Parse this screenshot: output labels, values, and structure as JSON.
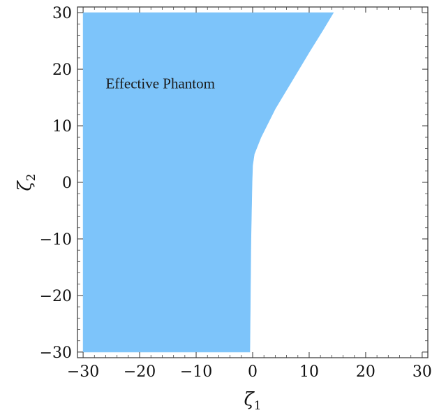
{
  "chart_data": {
    "type": "area",
    "title": "",
    "xlabel_base": "ζ",
    "xlabel_sub": "1",
    "ylabel_base": "ζ",
    "ylabel_sub": "2",
    "xlim": [
      -31,
      31
    ],
    "ylim": [
      -31,
      31
    ],
    "xticks": [
      -30,
      -20,
      -10,
      0,
      10,
      20,
      30
    ],
    "yticks": [
      -30,
      -20,
      -10,
      0,
      10,
      20,
      30
    ],
    "xtick_labels": [
      "−30",
      "−20",
      "−10",
      "0",
      "10",
      "20",
      "30"
    ],
    "ytick_labels": [
      "−30",
      "−20",
      "−10",
      "0",
      "10",
      "20",
      "30"
    ],
    "grid": false,
    "region": {
      "name": "Effective Phantom",
      "color": "#7dc4fa",
      "boundary": [
        {
          "x": -30,
          "y": -30
        },
        {
          "x": -0.5,
          "y": -30
        },
        {
          "x": -0.3,
          "y": -10
        },
        {
          "x": -0.1,
          "y": 0
        },
        {
          "x": 0,
          "y": 3
        },
        {
          "x": 0.3,
          "y": 5
        },
        {
          "x": 1.5,
          "y": 8
        },
        {
          "x": 4,
          "y": 13
        },
        {
          "x": 7,
          "y": 18
        },
        {
          "x": 10,
          "y": 23
        },
        {
          "x": 12.5,
          "y": 27
        },
        {
          "x": 14.3,
          "y": 30
        },
        {
          "x": -30,
          "y": 30
        }
      ]
    },
    "annotation": {
      "text": "Effective Phantom",
      "x": -26,
      "y": 17.5
    }
  }
}
